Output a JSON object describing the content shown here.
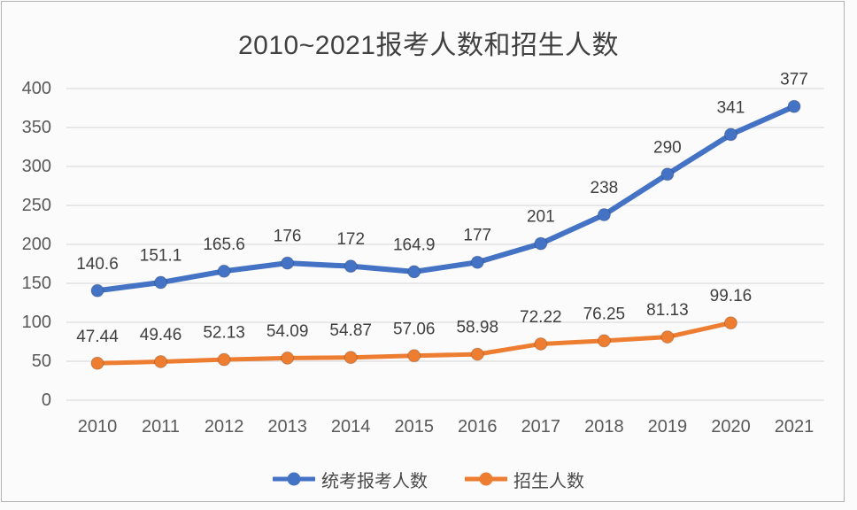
{
  "chart_data": {
    "type": "line",
    "title": "2010~2021报考人数和招生人数",
    "categories": [
      "2010",
      "2011",
      "2012",
      "2013",
      "2014",
      "2015",
      "2016",
      "2017",
      "2018",
      "2019",
      "2020",
      "2021"
    ],
    "series": [
      {
        "name": "统考报考人数",
        "color": "#4472C4",
        "line_width": 6,
        "marker": "circle",
        "values": [
          140.6,
          151.1,
          165.6,
          176,
          172,
          164.9,
          177,
          201,
          238,
          290,
          341,
          377
        ],
        "labels": [
          "140.6",
          "151.1",
          "165.6",
          "176",
          "172",
          "164.9",
          "177",
          "201",
          "238",
          "290",
          "341",
          "377"
        ]
      },
      {
        "name": "招生人数",
        "color": "#ED7D31",
        "line_width": 5,
        "marker": "circle",
        "values": [
          47.44,
          49.46,
          52.13,
          54.09,
          54.87,
          57.06,
          58.98,
          72.22,
          76.25,
          81.13,
          99.16
        ],
        "labels": [
          "47.44",
          "49.46",
          "52.13",
          "54.09",
          "54.87",
          "57.06",
          "58.98",
          "72.22",
          "76.25",
          "81.13",
          "99.16"
        ]
      }
    ],
    "xlabel": "",
    "ylabel": "",
    "y_axis": {
      "min": 0,
      "max": 400,
      "step": 50,
      "tick_labels": [
        "0",
        "50",
        "100",
        "150",
        "200",
        "250",
        "300",
        "350",
        "400"
      ]
    },
    "grid": true,
    "gridline_color": "#d6d6d9",
    "tick_label_color": "#595959",
    "data_label_color": "#3f3f3f",
    "legend_position": "bottom"
  }
}
